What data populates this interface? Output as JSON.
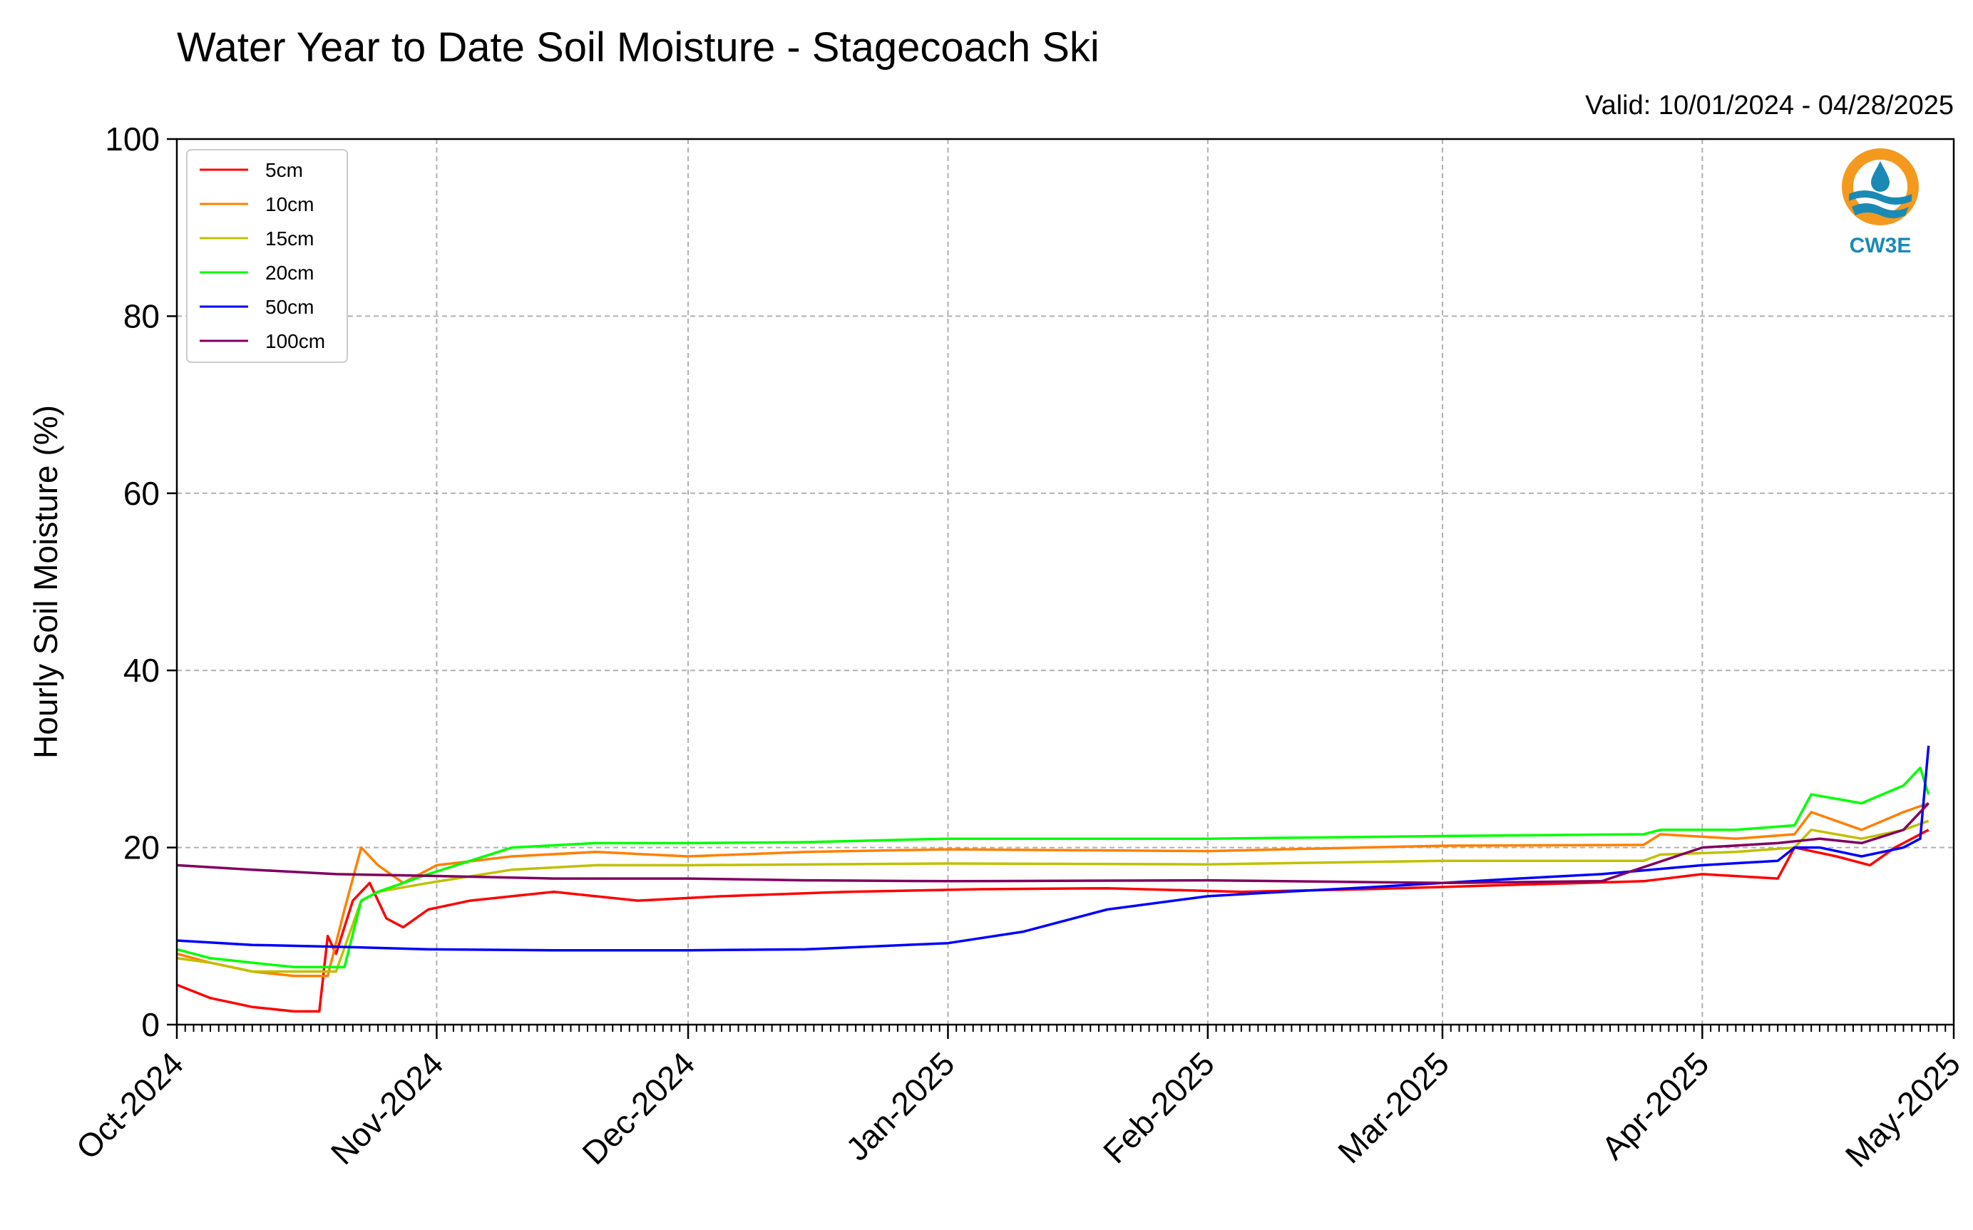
{
  "chart_data": {
    "type": "line",
    "title": "Water Year to Date Soil Moisture - Stagecoach Ski",
    "subtitle": "Valid: 10/01/2024 - 04/28/2025",
    "xlabel": "",
    "ylabel": "Hourly Soil Moisture (%)",
    "x_range": [
      "2024-10-01",
      "2025-05-01"
    ],
    "ylim": [
      0,
      100
    ],
    "y_ticks": [
      0,
      20,
      40,
      60,
      80,
      100
    ],
    "y_tick_labels": [
      "0",
      "20",
      "40",
      "60",
      "80",
      "100"
    ],
    "x_ticks": [
      "2024-10-01",
      "2024-11-01",
      "2024-12-01",
      "2025-01-01",
      "2025-02-01",
      "2025-03-01",
      "2025-04-01",
      "2025-05-01"
    ],
    "x_tick_labels": [
      "Oct-2024",
      "Nov-2024",
      "Dec-2024",
      "Jan-2025",
      "Feb-2025",
      "Mar-2025",
      "Apr-2025",
      "May-2025"
    ],
    "grid": true,
    "legend_position": "top-left",
    "series": [
      {
        "name": "5cm",
        "color": "#ff0000",
        "x": [
          "2024-10-01",
          "2024-10-05",
          "2024-10-10",
          "2024-10-15",
          "2024-10-18",
          "2024-10-19",
          "2024-10-20",
          "2024-10-22",
          "2024-10-24",
          "2024-10-26",
          "2024-10-28",
          "2024-10-31",
          "2024-11-05",
          "2024-11-15",
          "2024-11-25",
          "2024-12-05",
          "2024-12-20",
          "2025-01-05",
          "2025-01-20",
          "2025-02-05",
          "2025-02-20",
          "2025-03-10",
          "2025-03-25",
          "2025-04-01",
          "2025-04-10",
          "2025-04-12",
          "2025-04-17",
          "2025-04-21",
          "2025-04-24",
          "2025-04-26",
          "2025-04-28"
        ],
        "y": [
          4.5,
          3,
          2,
          1.5,
          1.5,
          10,
          8,
          14,
          16,
          12,
          11,
          13,
          14,
          15,
          14,
          14.5,
          15,
          15.3,
          15.4,
          15,
          15.3,
          15.8,
          16.2,
          17,
          16.5,
          20,
          19,
          18,
          20,
          21,
          22
        ]
      },
      {
        "name": "10cm",
        "color": "#ff8000",
        "x": [
          "2024-10-01",
          "2024-10-05",
          "2024-10-10",
          "2024-10-15",
          "2024-10-19",
          "2024-10-21",
          "2024-10-23",
          "2024-10-25",
          "2024-10-28",
          "2024-11-01",
          "2024-11-10",
          "2024-11-20",
          "2024-12-01",
          "2024-12-15",
          "2025-01-01",
          "2025-02-01",
          "2025-03-01",
          "2025-03-25",
          "2025-03-27",
          "2025-04-05",
          "2025-04-12",
          "2025-04-14",
          "2025-04-20",
          "2025-04-25",
          "2025-04-28"
        ],
        "y": [
          8,
          7,
          6,
          5.5,
          5.5,
          13,
          20,
          18,
          16,
          18,
          19,
          19.5,
          19,
          19.5,
          19.8,
          19.6,
          20.2,
          20.3,
          21.5,
          21,
          21.5,
          24,
          22,
          24,
          25
        ]
      },
      {
        "name": "15cm",
        "color": "#c0c000",
        "x": [
          "2024-10-01",
          "2024-10-05",
          "2024-10-10",
          "2024-10-15",
          "2024-10-20",
          "2024-10-23",
          "2024-10-25",
          "2024-10-31",
          "2024-11-10",
          "2024-11-20",
          "2024-12-01",
          "2025-01-01",
          "2025-02-01",
          "2025-03-01",
          "2025-03-25",
          "2025-03-27",
          "2025-04-05",
          "2025-04-12",
          "2025-04-14",
          "2025-04-20",
          "2025-04-25",
          "2025-04-28"
        ],
        "y": [
          7.5,
          7,
          6,
          6,
          6,
          14,
          15,
          16,
          17.5,
          18,
          18,
          18.2,
          18.1,
          18.5,
          18.5,
          19.2,
          19.5,
          20,
          22,
          21,
          22,
          23
        ]
      },
      {
        "name": "20cm",
        "color": "#00ff00",
        "x": [
          "2024-10-01",
          "2024-10-05",
          "2024-10-10",
          "2024-10-15",
          "2024-10-21",
          "2024-10-23",
          "2024-10-25",
          "2024-10-31",
          "2024-11-10",
          "2024-11-20",
          "2024-12-01",
          "2024-12-15",
          "2025-01-01",
          "2025-02-01",
          "2025-03-01",
          "2025-03-25",
          "2025-03-27",
          "2025-04-05",
          "2025-04-12",
          "2025-04-14",
          "2025-04-20",
          "2025-04-25",
          "2025-04-27",
          "2025-04-28"
        ],
        "y": [
          8.5,
          7.5,
          7,
          6.5,
          6.5,
          14,
          15,
          17,
          20,
          20.5,
          20.5,
          20.6,
          21,
          21,
          21.3,
          21.5,
          22,
          22,
          22.5,
          26,
          25,
          27,
          29,
          26
        ]
      },
      {
        "name": "50cm",
        "color": "#0000ff",
        "x": [
          "2024-10-01",
          "2024-10-10",
          "2024-10-20",
          "2024-10-31",
          "2024-11-15",
          "2024-12-01",
          "2024-12-15",
          "2025-01-01",
          "2025-01-10",
          "2025-01-20",
          "2025-02-01",
          "2025-02-10",
          "2025-02-20",
          "2025-03-01",
          "2025-03-10",
          "2025-03-20",
          "2025-04-01",
          "2025-04-10",
          "2025-04-12",
          "2025-04-15",
          "2025-04-20",
          "2025-04-25",
          "2025-04-27",
          "2025-04-28"
        ],
        "y": [
          9.5,
          9,
          8.8,
          8.5,
          8.4,
          8.4,
          8.5,
          9.2,
          10.5,
          13,
          14.5,
          15,
          15.5,
          16,
          16.5,
          17,
          18,
          18.5,
          20,
          20,
          19,
          20,
          21,
          31.5
        ]
      },
      {
        "name": "100cm",
        "color": "#800060",
        "x": [
          "2024-10-01",
          "2024-10-10",
          "2024-10-20",
          "2024-10-31",
          "2024-11-15",
          "2024-12-01",
          "2024-12-15",
          "2025-01-01",
          "2025-02-01",
          "2025-03-01",
          "2025-03-20",
          "2025-04-01",
          "2025-04-10",
          "2025-04-15",
          "2025-04-20",
          "2025-04-25",
          "2025-04-28"
        ],
        "y": [
          18,
          17.5,
          17,
          16.8,
          16.5,
          16.5,
          16.3,
          16.2,
          16.3,
          16.0,
          16.2,
          20,
          20.5,
          21,
          20.5,
          22,
          25
        ]
      }
    ]
  },
  "logo": {
    "text": "CW3E",
    "ring_color": "#f39a1e",
    "wave_color": "#1a8ab5"
  }
}
